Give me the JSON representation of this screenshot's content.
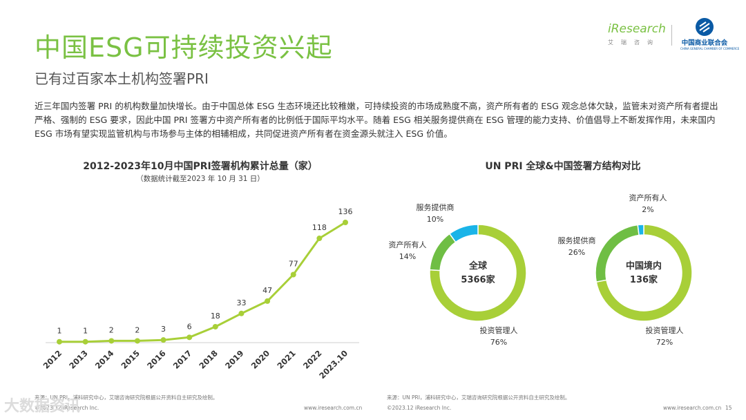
{
  "header": {
    "title": "中国ESG可持续投资兴起",
    "subtitle": "已有过百家本土机构签署PRI",
    "intro": "近三年国内签署 PRI 的机构数量加快增长。由于中国总体 ESG 生态环境还比较稚嫩，可持续投资的市场成熟度不高，资产所有者的 ESG 观念总体欠缺，监管未对资产所有者提出严格、强制的 ESG 要求，因此中国 PRI 签署方中资产所有者的比例低于国际平均水平。随着 ESG 相关服务提供商在 ESG 管理的能力支持、价值倡导上不断发挥作用，未来国内 ESG 市场有望实现监管机构与市场参与主体的相辅相成，共同促进资产所有者在资金源头就注入 ESG 价值。"
  },
  "logos": {
    "iresearch": "iResearch",
    "iresearch_cn": "艾瑞咨询",
    "chamber": "中国商业联合会",
    "chamber_en": "CHINA GENERAL CHAMBER OF COMMERCE"
  },
  "colors": {
    "green": "#7ac143",
    "lime": "#a8cf38",
    "cyan": "#1ab4e8",
    "dark_green": "#6fbe44"
  },
  "chart_data": [
    {
      "type": "line",
      "title": "2012-2023年10月中国PRI签署机构累计总量（家）",
      "subtitle": "（数据统计截至2023 年 10 月 31 日）",
      "categories": [
        "2012",
        "2013",
        "2014",
        "2015",
        "2016",
        "2017",
        "2018",
        "2019",
        "2020",
        "2021",
        "2022",
        "2023.10"
      ],
      "values": [
        1,
        1,
        2,
        2,
        3,
        6,
        18,
        33,
        47,
        77,
        118,
        136
      ],
      "ylim": [
        0,
        150
      ],
      "grid": false,
      "xlabel": "",
      "ylabel": ""
    },
    {
      "type": "pie",
      "title": "UN PRI 全球&中国签署方结构对比",
      "donuts": [
        {
          "center_label": "全球",
          "center_value": "5366家",
          "slices": [
            {
              "name": "投资管理人",
              "value": 76,
              "label": "76%",
              "color": "#a8cf38"
            },
            {
              "name": "资产所有人",
              "value": 14,
              "label": "14%",
              "color": "#6fbe44"
            },
            {
              "name": "服务提供商",
              "value": 10,
              "label": "10%",
              "color": "#1ab4e8"
            }
          ]
        },
        {
          "center_label": "中国境内",
          "center_value": "136家",
          "slices": [
            {
              "name": "投资管理人",
              "value": 72,
              "label": "72%",
              "color": "#a8cf38"
            },
            {
              "name": "服务提供商",
              "value": 26,
              "label": "26%",
              "color": "#6fbe44"
            },
            {
              "name": "资产所有人",
              "value": 2,
              "label": "2%",
              "color": "#1ab4e8"
            }
          ]
        }
      ]
    }
  ],
  "footer": {
    "source_left": "来源：UN PRI，浦科研究中心，艾瑞咨询研究院根据公开资料自主研究及绘制。",
    "source_right": "来源：UN PRI，浦科研究中心，艾瑞咨询研究院根据公开资料自主研究及绘制。",
    "copyright_left": "©2023.12 iResearch Inc.",
    "url_left": "www.iresearch.com.cn",
    "copyright_right": "©2023.12 iResearch Inc.",
    "url_right": "www.iresearch.com.cn",
    "page": "15",
    "watermark": "大数据资讯"
  }
}
